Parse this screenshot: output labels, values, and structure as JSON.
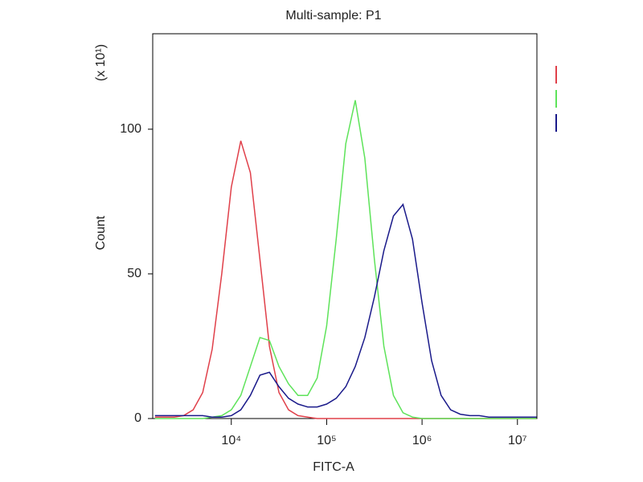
{
  "chart_data": {
    "type": "line",
    "title": "Multi-sample: P1",
    "x_label": "FITC-A",
    "y_label": "Count",
    "y_multiplier": "(x 10¹)",
    "xscale": "log",
    "xlim": [
      1500,
      16000000
    ],
    "ylim": [
      0,
      133
    ],
    "xticks": [
      {
        "value": 10000,
        "label": "10⁴"
      },
      {
        "value": 100000,
        "label": "10⁵"
      },
      {
        "value": 1000000,
        "label": "10⁶"
      },
      {
        "value": 10000000,
        "label": "10⁷"
      }
    ],
    "yticks": [
      0,
      50,
      100
    ],
    "x": [
      1585,
      1995,
      2512,
      3162,
      3981,
      5012,
      6310,
      7943,
      10000,
      12589,
      15849,
      19953,
      25119,
      31623,
      39811,
      50119,
      63096,
      79433,
      100000,
      125893,
      158489,
      199526,
      251189,
      316228,
      398107,
      501187,
      630957,
      794328,
      1000000,
      1258925,
      1584893,
      1995262,
      2511886,
      3162278,
      3981072,
      5011872,
      6309573,
      7943282,
      10000000,
      12589254,
      15848932
    ],
    "series": [
      {
        "color": "#e0404a",
        "values": [
          0.5,
          0.5,
          0.5,
          1,
          3,
          9,
          24,
          50,
          80,
          96,
          85,
          55,
          25,
          9,
          3,
          1,
          0.5,
          0,
          0,
          0,
          0,
          0,
          0,
          0,
          0,
          0,
          0,
          0,
          0,
          0,
          0,
          0,
          0,
          0,
          0,
          0,
          0,
          0,
          0,
          0,
          0
        ]
      },
      {
        "color": "#5ee35a",
        "values": [
          0,
          0,
          0,
          0,
          0,
          0,
          0.5,
          1,
          3,
          8,
          18,
          28,
          27,
          18,
          12,
          8,
          8,
          14,
          32,
          62,
          95,
          110,
          90,
          55,
          25,
          8,
          2,
          0.5,
          0,
          0,
          0,
          0,
          0,
          0,
          0,
          0,
          0,
          0,
          0,
          0,
          0
        ]
      },
      {
        "color": "#1a1a8a",
        "values": [
          1,
          1,
          1,
          1,
          1,
          1,
          0.5,
          0.5,
          1,
          3,
          8,
          15,
          16,
          11,
          7,
          5,
          4,
          4,
          5,
          7,
          11,
          18,
          28,
          42,
          58,
          70,
          74,
          62,
          40,
          20,
          8,
          3,
          1.5,
          1,
          1,
          0.5,
          0.5,
          0.5,
          0.5,
          0.5,
          0.5
        ]
      }
    ]
  }
}
